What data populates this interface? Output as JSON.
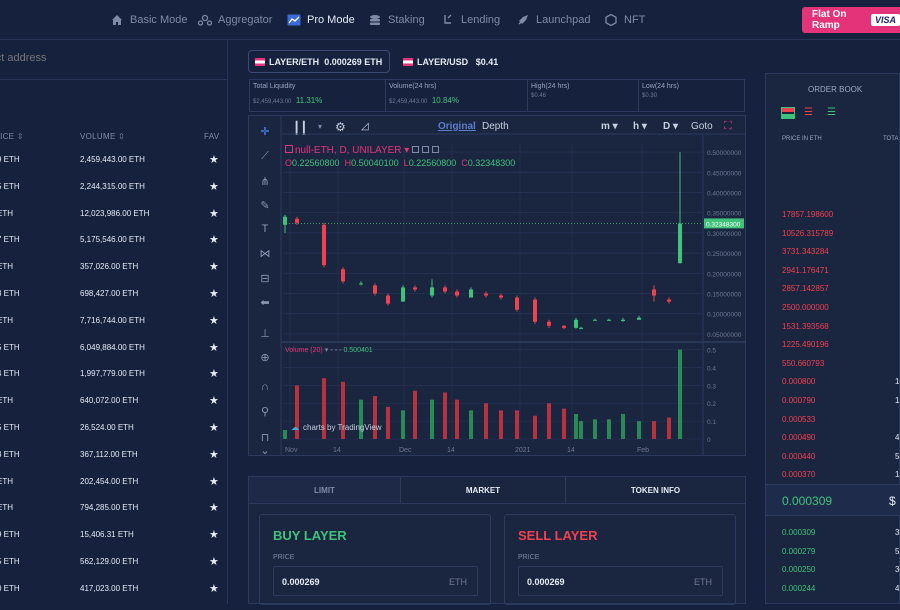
{
  "nav": {
    "items": [
      {
        "label": "Basic Mode",
        "icon": "home-icon"
      },
      {
        "label": "Aggregator",
        "icon": "aggregator-icon"
      },
      {
        "label": "Pro Mode",
        "icon": "chart-icon"
      },
      {
        "label": "Staking",
        "icon": "stack-icon"
      },
      {
        "label": "Lending",
        "icon": "lending-icon"
      },
      {
        "label": "Launchpad",
        "icon": "rocket-icon"
      },
      {
        "label": "NFT",
        "icon": "nft-icon"
      }
    ],
    "active": "Pro Mode",
    "flat_on_ramp": "Flat On Ramp",
    "visa": "VISA"
  },
  "search": {
    "placeholder": "ract address"
  },
  "token_list": {
    "headers": {
      "price": "RICE",
      "volume": "VOLUME",
      "fav": "FAV"
    },
    "rows": [
      {
        "price": "9 ETH",
        "volume": "2,459,443.00 ETH"
      },
      {
        "price": "5 ETH",
        "volume": "2,244,315.00 ETH"
      },
      {
        "price": "ETH",
        "volume": "12,023,986.00 ETH"
      },
      {
        "price": "7 ETH",
        "volume": "5,175,546.00 ETH"
      },
      {
        "price": "ETH",
        "volume": "357,026.00 ETH"
      },
      {
        "price": "3 ETH",
        "volume": "698,427.00 ETH"
      },
      {
        "price": "ETH",
        "volume": "7,716,744.00 ETH"
      },
      {
        "price": "5 ETH",
        "volume": "6,049,884.00 ETH"
      },
      {
        "price": "4 ETH",
        "volume": "1,997,779.00 ETH"
      },
      {
        "price": "ETH",
        "volume": "640,072.00 ETH"
      },
      {
        "price": "5 ETH",
        "volume": "26,524.00 ETH"
      },
      {
        "price": "3 ETH",
        "volume": "367,112.00 ETH"
      },
      {
        "price": "ETH",
        "volume": "202,454.00 ETH"
      },
      {
        "price": "ETH",
        "volume": "794,285.00 ETH"
      },
      {
        "price": "9 ETH",
        "volume": "15,406.31 ETH"
      },
      {
        "price": "5 ETH",
        "volume": "562,129.00 ETH"
      },
      {
        "price": "0 ETH",
        "volume": "417,023.00 ETH"
      }
    ]
  },
  "pairs": [
    {
      "name": "LAYER/ETH",
      "price": "0.000269 ETH"
    },
    {
      "name": "LAYER/USD",
      "price": "$0.41"
    }
  ],
  "stats": [
    {
      "label": "Total Liquidity",
      "value": "$2,459,443.00",
      "pct": "11.31%"
    },
    {
      "label": "Volume(24 hrs)",
      "value": "$2,459,443.00",
      "pct": "10.84%"
    },
    {
      "label": "High(24 hrs)",
      "value": "$0.46",
      "pct": ""
    },
    {
      "label": "Low(24 hrs)",
      "value": "$0.30",
      "pct": ""
    }
  ],
  "chart": {
    "toolbar": {
      "original": "Original",
      "depth": "Depth",
      "m": "m",
      "h": "h",
      "D": "D",
      "goto": "Goto"
    },
    "legend": "null-ETH, D, UNILAYER",
    "ohlc": {
      "O": "0.22560800",
      "H": "0.50040100",
      "L": "0.22560800",
      "C": "0.32348300"
    },
    "volume_legend": "Volume (20)",
    "volume_value": "0.500401",
    "last_price": "0.32348300",
    "y_ticks": [
      "0.50000000",
      "0.45000000",
      "0.40000000",
      "0.35000000",
      "0.30000000",
      "0.25000000",
      "0.20000000",
      "0.15000000",
      "0.10000000",
      "0.05000000"
    ],
    "vol_ticks": [
      "0.5",
      "0.4",
      "0.3",
      "0.2",
      "0.1",
      "0"
    ],
    "x_ticks": [
      "Nov",
      "14",
      "Dec",
      "14",
      "2021",
      "14",
      "Feb"
    ],
    "watermark": "charts by TradingView"
  },
  "chart_data": {
    "type": "candlestick",
    "ylim": [
      0.03,
      0.52
    ],
    "candles": [
      {
        "o": 0.32,
        "c": 0.34,
        "h": 0.345,
        "l": 0.3
      },
      {
        "o": 0.335,
        "c": 0.325,
        "h": 0.34,
        "l": 0.32
      },
      {
        "o": 0.32,
        "c": 0.22,
        "h": 0.325,
        "l": 0.215
      },
      {
        "o": 0.21,
        "c": 0.18,
        "h": 0.215,
        "l": 0.175
      },
      {
        "o": 0.175,
        "c": 0.175,
        "h": 0.18,
        "l": 0.17
      },
      {
        "o": 0.17,
        "c": 0.15,
        "h": 0.175,
        "l": 0.145
      },
      {
        "o": 0.145,
        "c": 0.125,
        "h": 0.15,
        "l": 0.12
      },
      {
        "o": 0.13,
        "c": 0.165,
        "h": 0.17,
        "l": 0.13
      },
      {
        "o": 0.165,
        "c": 0.16,
        "h": 0.17,
        "l": 0.155
      },
      {
        "o": 0.145,
        "c": 0.165,
        "h": 0.185,
        "l": 0.14
      },
      {
        "o": 0.165,
        "c": 0.155,
        "h": 0.17,
        "l": 0.15
      },
      {
        "o": 0.155,
        "c": 0.145,
        "h": 0.16,
        "l": 0.14
      },
      {
        "o": 0.14,
        "c": 0.16,
        "h": 0.165,
        "l": 0.14
      },
      {
        "o": 0.15,
        "c": 0.145,
        "h": 0.155,
        "l": 0.14
      },
      {
        "o": 0.145,
        "c": 0.14,
        "h": 0.15,
        "l": 0.135
      },
      {
        "o": 0.14,
        "c": 0.11,
        "h": 0.145,
        "l": 0.105
      },
      {
        "o": 0.135,
        "c": 0.08,
        "h": 0.14,
        "l": 0.075
      },
      {
        "o": 0.08,
        "c": 0.07,
        "h": 0.085,
        "l": 0.065
      },
      {
        "o": 0.07,
        "c": 0.065,
        "h": 0.072,
        "l": 0.062
      },
      {
        "o": 0.065,
        "c": 0.065,
        "h": 0.068,
        "l": 0.062
      },
      {
        "o": 0.065,
        "c": 0.085,
        "h": 0.09,
        "l": 0.063
      },
      {
        "o": 0.085,
        "c": 0.085,
        "h": 0.088,
        "l": 0.083
      },
      {
        "o": 0.085,
        "c": 0.085,
        "h": 0.088,
        "l": 0.082
      },
      {
        "o": 0.082,
        "c": 0.085,
        "h": 0.09,
        "l": 0.08
      },
      {
        "o": 0.085,
        "c": 0.09,
        "h": 0.095,
        "l": 0.085
      },
      {
        "o": 0.16,
        "c": 0.145,
        "h": 0.17,
        "l": 0.13
      },
      {
        "o": 0.135,
        "c": 0.13,
        "h": 0.14,
        "l": 0.125
      },
      {
        "o": 0.225,
        "c": 0.323,
        "h": 0.5,
        "l": 0.225
      }
    ],
    "volumes": [
      0.05,
      0.3,
      0.34,
      0.32,
      0.22,
      0.24,
      0.18,
      0.16,
      0.27,
      0.22,
      0.26,
      0.22,
      0.16,
      0.2,
      0.16,
      0.16,
      0.13,
      0.2,
      0.17,
      0.1,
      0.14,
      0.11,
      0.11,
      0.14,
      0.1,
      0.1,
      0.12,
      0.5
    ],
    "vol_ylim": [
      0,
      0.52
    ]
  },
  "trade": {
    "tabs": [
      "LIMIT",
      "MARKET",
      "TOKEN INFO"
    ],
    "buy": {
      "title": "BUY LAYER",
      "price_label": "PRICE",
      "price": "0.000269",
      "unit": "ETH"
    },
    "sell": {
      "title": "SELL LAYER",
      "price_label": "PRICE",
      "price": "0.000269",
      "unit": "ETH"
    }
  },
  "orderbook": {
    "title": "ORDER BOOK",
    "head_price": "PRICE IN ETH",
    "head_total": "TOTA",
    "asks": [
      {
        "p": "17857.198600",
        "q": ""
      },
      {
        "p": "10526.315789",
        "q": ""
      },
      {
        "p": "3731.343284",
        "q": ""
      },
      {
        "p": "2941.176471",
        "q": ""
      },
      {
        "p": "2857.142857",
        "q": ""
      },
      {
        "p": "2500.000000",
        "q": ""
      },
      {
        "p": "1531.393568",
        "q": ""
      },
      {
        "p": "1225.490196",
        "q": ""
      },
      {
        "p": "550.660793",
        "q": ""
      },
      {
        "p": "0.000800",
        "q": "10"
      },
      {
        "p": "0.000790",
        "q": "1"
      },
      {
        "p": "0.000533",
        "q": ""
      },
      {
        "p": "0.000490",
        "q": "4"
      },
      {
        "p": "0.000440",
        "q": "5"
      },
      {
        "p": "0.000370",
        "q": "1"
      }
    ],
    "mid": "0.000309",
    "mid_usd": "$",
    "bids": [
      {
        "p": "0.000309",
        "q": "3"
      },
      {
        "p": "0.000279",
        "q": "5"
      },
      {
        "p": "0.000250",
        "q": "30"
      },
      {
        "p": "0.000244",
        "q": "4"
      }
    ],
    "colors": {
      "ask": "#f0414f",
      "bid": "#3fc37a"
    }
  }
}
